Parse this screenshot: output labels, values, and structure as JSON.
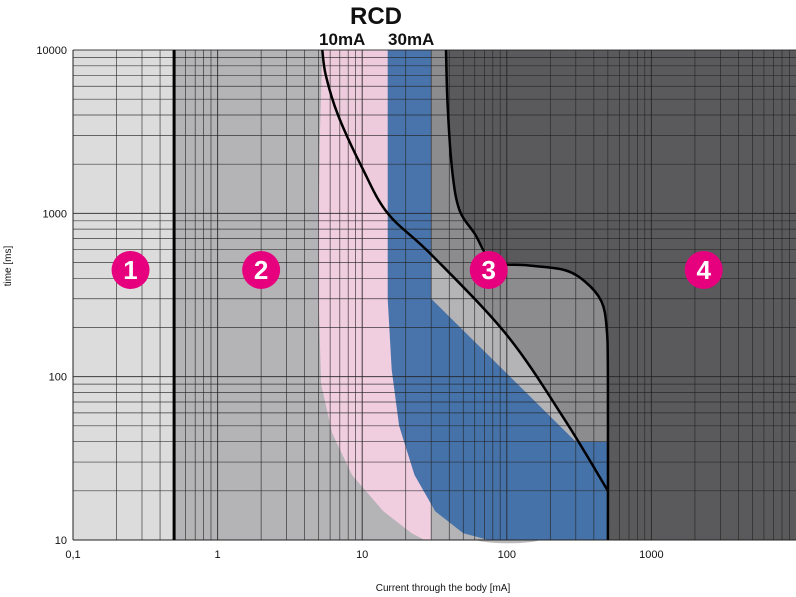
{
  "chart_data": {
    "type": "area",
    "title": "RCD",
    "xlabel": "Current through the body [mA]",
    "ylabel": "time [ms]",
    "x_scale": "log",
    "y_scale": "log",
    "xlim": [
      0.1,
      10000
    ],
    "ylim": [
      10,
      10000
    ],
    "x_ticks": [
      {
        "value": 0.1,
        "label": "0,1"
      },
      {
        "value": 1,
        "label": "1"
      },
      {
        "value": 10,
        "label": "10"
      },
      {
        "value": 100,
        "label": "100"
      },
      {
        "value": 1000,
        "label": "1000"
      }
    ],
    "y_ticks": [
      {
        "value": 10,
        "label": "10"
      },
      {
        "value": 100,
        "label": "100"
      },
      {
        "value": 1000,
        "label": "1000"
      },
      {
        "value": 10000,
        "label": "10000"
      }
    ],
    "grid": true,
    "rcd_labels": [
      {
        "text": "10mA",
        "x": 10
      },
      {
        "text": "30mA",
        "x": 30
      }
    ],
    "zones": [
      {
        "label": "1",
        "x": 0.25,
        "y": 450,
        "color": "#e6007e"
      },
      {
        "label": "2",
        "x": 2,
        "y": 450,
        "color": "#e6007e"
      },
      {
        "label": "3",
        "x": 75,
        "y": 450,
        "color": "#e6007e"
      },
      {
        "label": "4",
        "x": 2300,
        "y": 450,
        "color": "#e6007e"
      }
    ],
    "colors": {
      "zone1": "#dcdcdd",
      "zone2": "#b4b4b7",
      "zone3": "#8c8c8f",
      "zone4": "#5a5a5c",
      "rcd10": "#f3cfe0",
      "rcd30": "#3f6fa8",
      "grid": "#222222",
      "curve": "#000000"
    },
    "boundary_a": [
      [
        0.5,
        10
      ],
      [
        0.5,
        10000
      ]
    ],
    "boundary_b": [
      [
        5.3,
        10000
      ],
      [
        5.6,
        7000
      ],
      [
        6.8,
        4000
      ],
      [
        10,
        1900
      ],
      [
        15,
        1000
      ],
      [
        30,
        560
      ],
      [
        100,
        180
      ],
      [
        250,
        55
      ],
      [
        500,
        20
      ]
    ],
    "boundary_c": [
      [
        38,
        10000
      ],
      [
        39,
        4500
      ],
      [
        42,
        1800
      ],
      [
        47,
        1050
      ],
      [
        60,
        750
      ],
      [
        80,
        510
      ],
      [
        140,
        480
      ],
      [
        250,
        450
      ],
      [
        350,
        380
      ],
      [
        450,
        290
      ],
      [
        490,
        200
      ],
      [
        500,
        100
      ],
      [
        500,
        10
      ]
    ],
    "rcd10_region": [
      [
        5.3,
        10000
      ],
      [
        5.1,
        3000
      ],
      [
        5,
        900
      ],
      [
        5,
        300
      ],
      [
        5.2,
        90
      ],
      [
        6.2,
        45
      ],
      [
        8.5,
        25
      ],
      [
        14,
        15
      ],
      [
        22,
        11
      ],
      [
        27,
        10
      ],
      [
        30,
        10
      ],
      [
        30,
        10000
      ]
    ],
    "rcd30_region": [
      [
        15,
        10000
      ],
      [
        15,
        1000
      ],
      [
        15,
        300
      ],
      [
        16,
        110
      ],
      [
        18,
        50
      ],
      [
        23,
        25
      ],
      [
        32,
        15
      ],
      [
        50,
        11
      ],
      [
        75,
        10
      ],
      [
        500,
        10
      ],
      [
        500,
        40
      ],
      [
        300,
        40
      ],
      [
        30,
        300
      ],
      [
        30,
        10000
      ]
    ],
    "zone2_lighter_overlay": [
      [
        10,
        300
      ],
      [
        18,
        170
      ],
      [
        30,
        100
      ],
      [
        60,
        50
      ],
      [
        110,
        25
      ],
      [
        160,
        14
      ],
      [
        170,
        10
      ],
      [
        60,
        10
      ],
      [
        30,
        15
      ],
      [
        15,
        28
      ],
      [
        10,
        50
      ]
    ]
  }
}
